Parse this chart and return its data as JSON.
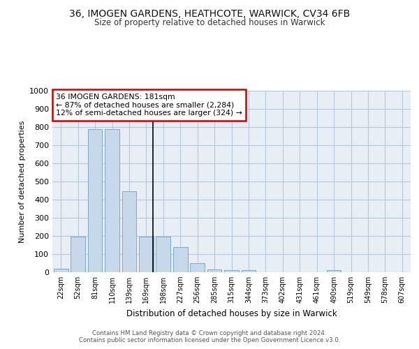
{
  "title_line1": "36, IMOGEN GARDENS, HEATHCOTE, WARWICK, CV34 6FB",
  "title_line2": "Size of property relative to detached houses in Warwick",
  "xlabel": "Distribution of detached houses by size in Warwick",
  "ylabel": "Number of detached properties",
  "bar_color": "#c8d8eb",
  "bar_edge_color": "#7aaac8",
  "background_color": "#e8eef6",
  "categories": [
    "22sqm",
    "52sqm",
    "81sqm",
    "110sqm",
    "139sqm",
    "169sqm",
    "198sqm",
    "227sqm",
    "256sqm",
    "285sqm",
    "315sqm",
    "344sqm",
    "373sqm",
    "402sqm",
    "431sqm",
    "461sqm",
    "490sqm",
    "519sqm",
    "549sqm",
    "578sqm",
    "607sqm"
  ],
  "values": [
    18,
    195,
    790,
    790,
    445,
    195,
    195,
    140,
    50,
    15,
    12,
    12,
    0,
    0,
    0,
    0,
    10,
    0,
    0,
    0,
    0
  ],
  "ylim": [
    0,
    1000
  ],
  "yticks": [
    0,
    100,
    200,
    300,
    400,
    500,
    600,
    700,
    800,
    900,
    1000
  ],
  "annotation_text_line1": "36 IMOGEN GARDENS: 181sqm",
  "annotation_text_line2": "← 87% of detached houses are smaller (2,284)",
  "annotation_text_line3": "12% of semi-detached houses are larger (324) →",
  "annotation_box_color": "#ffffff",
  "annotation_border_color": "#cc0000",
  "vline_color": "#000000",
  "footer_line1": "Contains HM Land Registry data © Crown copyright and database right 2024.",
  "footer_line2": "Contains public sector information licensed under the Open Government Licence v3.0.",
  "grid_color": "#b8c8d8",
  "fig_bg": "#ffffff"
}
